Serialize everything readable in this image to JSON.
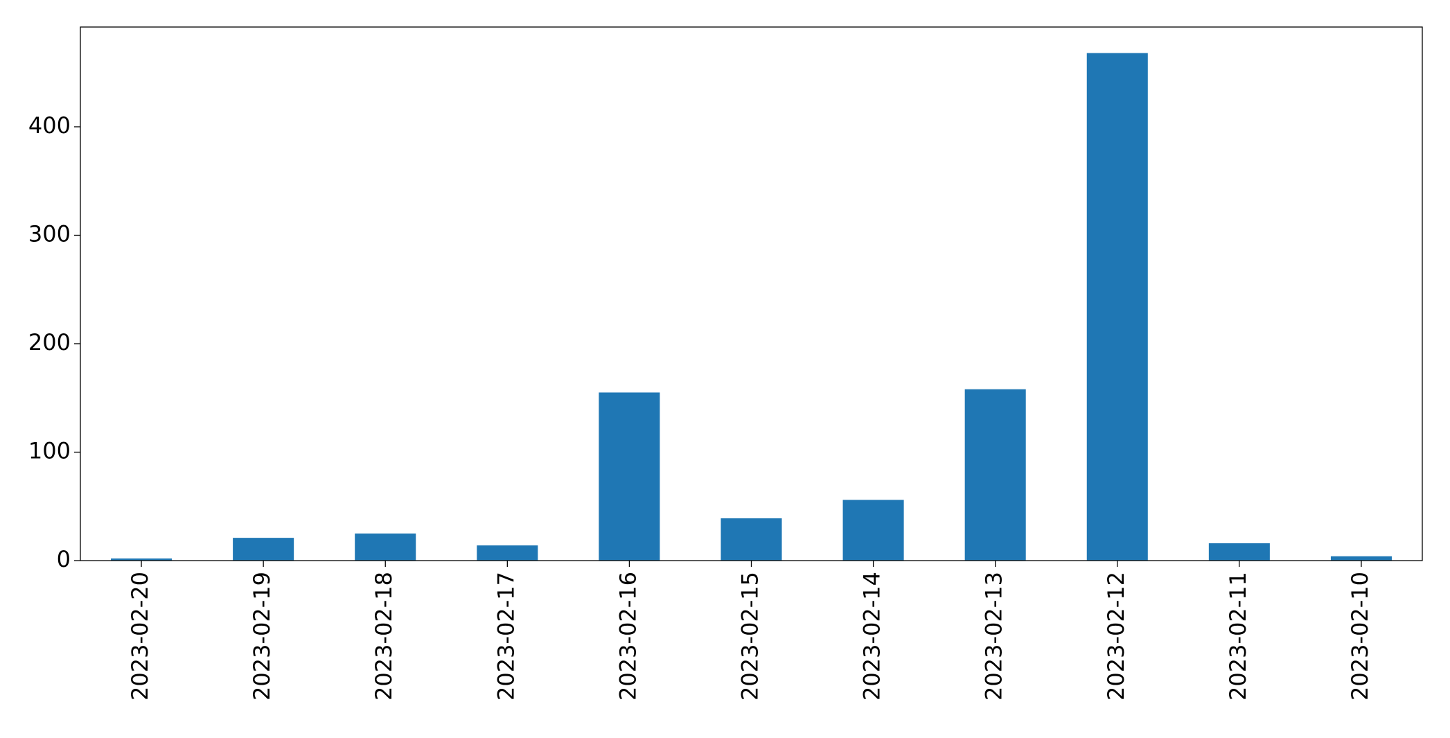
{
  "chart_data": {
    "type": "bar",
    "categories": [
      "2023-02-20",
      "2023-02-19",
      "2023-02-18",
      "2023-02-17",
      "2023-02-16",
      "2023-02-15",
      "2023-02-14",
      "2023-02-13",
      "2023-02-12",
      "2023-02-11",
      "2023-02-10"
    ],
    "values": [
      2,
      21,
      25,
      14,
      155,
      39,
      56,
      158,
      468,
      16,
      4
    ],
    "color": "#1f77b4",
    "ylim": [
      0,
      492
    ],
    "yticks": [
      0,
      100,
      200,
      300,
      400
    ],
    "grid": false
  }
}
